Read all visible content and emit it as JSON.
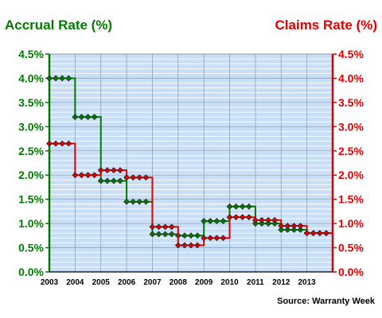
{
  "chart_data": {
    "type": "line",
    "left_axis": {
      "label": "Accrual Rate (%)",
      "color": "#007A00",
      "ylim": [
        0,
        4.5
      ],
      "ticks": [
        "0.0%",
        "0.5%",
        "1.0%",
        "1.5%",
        "2.0%",
        "2.5%",
        "3.0%",
        "3.5%",
        "4.0%",
        "4.5%"
      ]
    },
    "right_axis": {
      "label": "Claims Rate (%)",
      "color": "#E00000",
      "ylim": [
        0,
        4.5
      ],
      "ticks": [
        "0.0%",
        "0.5%",
        "1.0%",
        "1.5%",
        "2.0%",
        "2.5%",
        "3.0%",
        "3.5%",
        "4.0%",
        "4.5%"
      ]
    },
    "x_axis": {
      "ticks": [
        "2003",
        "2004",
        "2005",
        "2006",
        "2007",
        "2008",
        "2009",
        "2010",
        "2011",
        "2012",
        "2013"
      ],
      "xlim": [
        2003,
        2014
      ]
    },
    "grid": true,
    "series": [
      {
        "axis": "left",
        "color": "#007A00",
        "x": [
          2003.0,
          2003.25,
          2003.5,
          2003.75,
          2004.0,
          2004.25,
          2004.5,
          2004.75,
          2005.0,
          2005.25,
          2005.5,
          2005.75,
          2006.0,
          2006.25,
          2006.5,
          2006.75,
          2007.0,
          2007.25,
          2007.5,
          2007.75,
          2008.0,
          2008.25,
          2008.5,
          2008.75,
          2009.0,
          2009.25,
          2009.5,
          2009.75,
          2010.0,
          2010.25,
          2010.5,
          2010.75,
          2011.0,
          2011.25,
          2011.5,
          2011.75,
          2012.0,
          2012.25,
          2012.5,
          2012.75,
          2013.0,
          2013.25,
          2013.5,
          2013.75
        ],
        "y": [
          4.0,
          4.0,
          4.0,
          4.0,
          3.2,
          3.2,
          3.2,
          3.2,
          1.88,
          1.88,
          1.88,
          1.88,
          1.45,
          1.45,
          1.45,
          1.45,
          0.78,
          0.78,
          0.78,
          0.78,
          0.75,
          0.75,
          0.75,
          0.75,
          1.05,
          1.05,
          1.05,
          1.05,
          1.35,
          1.35,
          1.35,
          1.35,
          1.0,
          1.0,
          1.0,
          1.0,
          0.87,
          0.87,
          0.87,
          0.87,
          0.8,
          0.8,
          0.8,
          0.8
        ]
      },
      {
        "axis": "right",
        "color": "#E00000",
        "x": [
          2003.0,
          2003.25,
          2003.5,
          2003.75,
          2004.0,
          2004.25,
          2004.5,
          2004.75,
          2005.0,
          2005.25,
          2005.5,
          2005.75,
          2006.0,
          2006.25,
          2006.5,
          2006.75,
          2007.0,
          2007.25,
          2007.5,
          2007.75,
          2008.0,
          2008.25,
          2008.5,
          2008.75,
          2009.0,
          2009.25,
          2009.5,
          2009.75,
          2010.0,
          2010.25,
          2010.5,
          2010.75,
          2011.0,
          2011.25,
          2011.5,
          2011.75,
          2012.0,
          2012.25,
          2012.5,
          2012.75,
          2013.0,
          2013.25,
          2013.5,
          2013.75
        ],
        "y": [
          2.65,
          2.65,
          2.65,
          2.65,
          2.0,
          2.0,
          2.0,
          2.0,
          2.1,
          2.1,
          2.1,
          2.1,
          1.95,
          1.95,
          1.95,
          1.95,
          0.93,
          0.93,
          0.93,
          0.93,
          0.55,
          0.55,
          0.55,
          0.55,
          0.7,
          0.7,
          0.7,
          0.7,
          1.13,
          1.13,
          1.13,
          1.13,
          1.07,
          1.07,
          1.07,
          1.07,
          0.95,
          0.95,
          0.95,
          0.95,
          0.8,
          0.8,
          0.8,
          0.8
        ]
      }
    ],
    "source": "Source: Warranty Week"
  }
}
